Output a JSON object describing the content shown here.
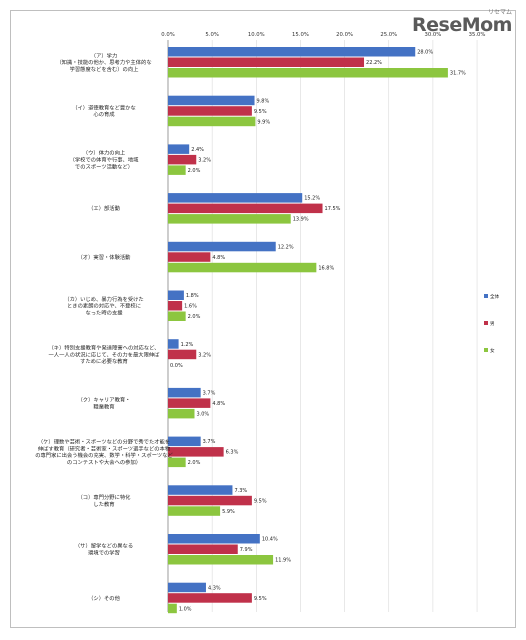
{
  "logo": {
    "text": "ReseMom",
    "sub": "リセマム"
  },
  "chart_data": {
    "type": "bar",
    "orientation": "horizontal",
    "xlim": [
      0,
      35
    ],
    "ticks": [
      "0.0%",
      "5.0%",
      "10.0%",
      "15.0%",
      "20.0%",
      "25.0%",
      "30.0%",
      "35.0%"
    ],
    "grid": true,
    "legend_position": "right",
    "categories": [
      [
        "（ア）学力",
        "（知識・技能の他か、思考力や主体的な",
        "学習態度などを含む）の向上"
      ],
      [
        "（イ）道徳教育など豊かな",
        "心の育成"
      ],
      [
        "（ウ）体力の向上",
        "（学校での体育や行事、地域",
        "でのスポーツ活動など）"
      ],
      [
        "（エ）部活動"
      ],
      [
        "（オ）実習・体験活動"
      ],
      [
        "（カ）いじめ、暴力行為を受けた",
        "ときの素朗の対応や、不登校に",
        "なった時の支援"
      ],
      [
        "（キ）特別支援教育や発達障害への対応など、",
        "一人一人の状況に応じて、その力を最大限伸ば",
        "すために必要な教育"
      ],
      [
        "（ク）キャリア教育・",
        "職業教育"
      ],
      [
        "（ケ）理数や芸術・スポーツなどの分野で秀でた才能を",
        "伸ばす教育（研究者・芸術家・スポーツ選手などの本物",
        "の専門家に出会う機会の充実、数学・科学・スポーツなど",
        "のコンテストや大会への参加）"
      ],
      [
        "（コ）専門分野に特化",
        "した教育"
      ],
      [
        "（サ）留学などの異なる",
        "環境での学習"
      ],
      [
        "（シ）その他"
      ]
    ],
    "series": [
      {
        "name": "全体",
        "color": "#4472c4",
        "values": [
          28.0,
          9.8,
          2.4,
          15.2,
          12.2,
          1.8,
          1.2,
          3.7,
          3.7,
          7.3,
          10.4,
          4.3
        ],
        "labels": [
          "28.0%",
          "9.8%",
          "2.4%",
          "15.2%",
          "12.2%",
          "1.8%",
          "1.2%",
          "3.7%",
          "3.7%",
          "7.3%",
          "10.4%",
          "4.3%"
        ]
      },
      {
        "name": "男",
        "color": "#c0314a",
        "values": [
          22.2,
          9.5,
          3.2,
          17.5,
          4.8,
          1.6,
          3.2,
          4.8,
          6.3,
          9.5,
          7.9,
          9.5
        ],
        "labels": [
          "22.2%",
          "9.5%",
          "3.2%",
          "17.5%",
          "4.8%",
          "1.6%",
          "3.2%",
          "4.8%",
          "6.3%",
          "9.5%",
          "7.9%",
          "9.5%"
        ]
      },
      {
        "name": "女",
        "color": "#8cc63f",
        "values": [
          31.7,
          9.9,
          2.0,
          13.9,
          16.8,
          2.0,
          0.0,
          3.0,
          2.0,
          5.9,
          11.9,
          1.0
        ],
        "labels": [
          "31.7%",
          "9.9%",
          "2.0%",
          "13.9%",
          "16.8%",
          "2.0%",
          "0.0%",
          "3.0%",
          "2.0%",
          "5.9%",
          "11.9%",
          "1.0%"
        ]
      }
    ]
  }
}
